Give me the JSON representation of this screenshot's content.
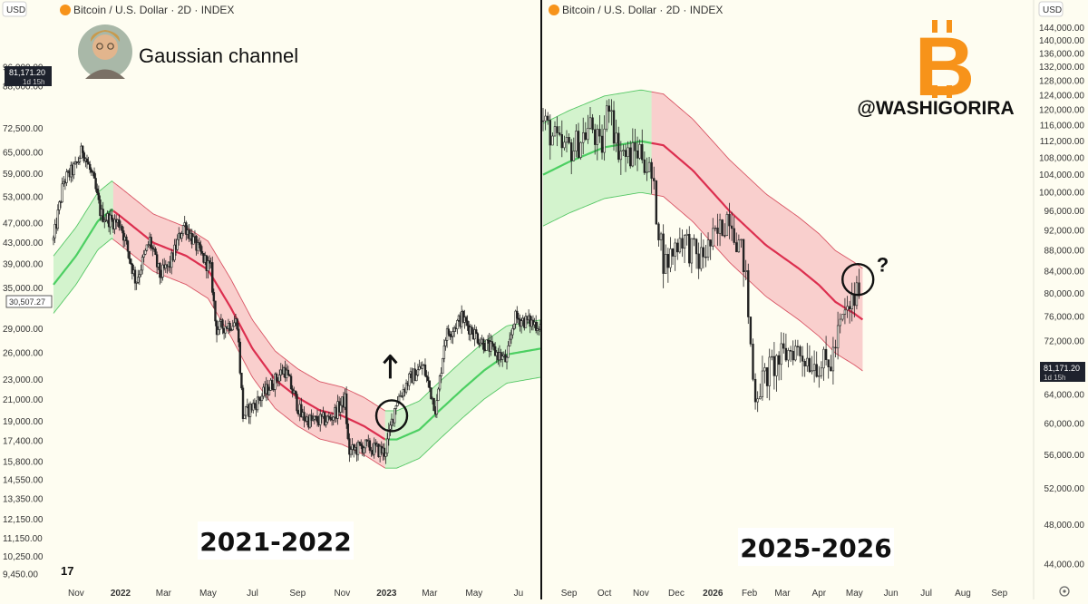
{
  "chart_data": [
    {
      "type": "candlestick",
      "title": "Bitcoin / U.S. Dollar · 2D · INDEX",
      "caption": "2021-2022",
      "annotation_title": "Gaussian channel",
      "currency": "USD",
      "price_label": "81,171.20",
      "countdown": "1d 15h",
      "crosshair_label": "30,507.27",
      "y_scale": "log",
      "ylim": [
        9000,
        120000
      ],
      "yticks": [
        9450,
        10250,
        11150,
        12150,
        13350,
        14550,
        15800,
        17400,
        19000,
        21000,
        23000,
        26000,
        29000,
        35000,
        39000,
        43000,
        47000,
        53000,
        59000,
        65000,
        72500,
        88000,
        96000
      ],
      "ytick_labels": [
        "9,450.00",
        "10,250.00",
        "11,150.00",
        "12,150.00",
        "13,350.00",
        "14,550.00",
        "15,800.00",
        "17,400.00",
        "19,000.00",
        "21,000.00",
        "23,000.00",
        "26,000.00",
        "29,000.00",
        "35,000.00",
        "39,000.00",
        "43,000.00",
        "47,000.00",
        "53,000.00",
        "59,000.00",
        "65,000.00",
        "72,500.00",
        "88,000.00",
        "96,000.00"
      ],
      "xlim": [
        "2021-10-01",
        "2023-07-31"
      ],
      "xticks": [
        {
          "date": "2021-11-01",
          "label": "Nov",
          "bold": false
        },
        {
          "date": "2022-01-01",
          "label": "2022",
          "bold": true
        },
        {
          "date": "2022-03-01",
          "label": "Mar",
          "bold": false
        },
        {
          "date": "2022-05-01",
          "label": "May",
          "bold": false
        },
        {
          "date": "2022-07-01",
          "label": "Jul",
          "bold": false
        },
        {
          "date": "2022-09-01",
          "label": "Sep",
          "bold": false
        },
        {
          "date": "2022-11-01",
          "label": "Nov",
          "bold": false
        },
        {
          "date": "2023-01-01",
          "label": "2023",
          "bold": true
        },
        {
          "date": "2023-03-01",
          "label": "Mar",
          "bold": false
        },
        {
          "date": "2023-05-01",
          "label": "May",
          "bold": false
        },
        {
          "date": "2023-07-01",
          "label": "Ju",
          "bold": false
        }
      ],
      "price_path": [
        [
          "2021-10-01",
          43500
        ],
        [
          "2021-10-15",
          57000
        ],
        [
          "2021-11-01",
          61000
        ],
        [
          "2021-11-10",
          66000
        ],
        [
          "2021-11-25",
          57000
        ],
        [
          "2021-12-05",
          49000
        ],
        [
          "2021-12-20",
          47500
        ],
        [
          "2022-01-01",
          47000
        ],
        [
          "2022-01-22",
          36000
        ],
        [
          "2022-02-10",
          43500
        ],
        [
          "2022-02-24",
          37000
        ],
        [
          "2022-03-10",
          39000
        ],
        [
          "2022-03-29",
          47000
        ],
        [
          "2022-04-20",
          41000
        ],
        [
          "2022-05-05",
          38000
        ],
        [
          "2022-05-12",
          29000
        ],
        [
          "2022-06-10",
          30000
        ],
        [
          "2022-06-18",
          19500
        ],
        [
          "2022-07-10",
          21000
        ],
        [
          "2022-08-14",
          24200
        ],
        [
          "2022-09-06",
          19500
        ],
        [
          "2022-09-20",
          19000
        ],
        [
          "2022-10-15",
          19200
        ],
        [
          "2022-11-05",
          21000
        ],
        [
          "2022-11-10",
          16500
        ],
        [
          "2022-12-01",
          17000
        ],
        [
          "2022-12-30",
          16500
        ],
        [
          "2023-01-14",
          20800
        ],
        [
          "2023-02-01",
          23000
        ],
        [
          "2023-02-20",
          24500
        ],
        [
          "2023-03-10",
          20000
        ],
        [
          "2023-03-22",
          28000
        ],
        [
          "2023-04-14",
          30500
        ],
        [
          "2023-05-10",
          27500
        ],
        [
          "2023-06-15",
          25000
        ],
        [
          "2023-06-25",
          30500
        ],
        [
          "2023-07-31",
          29500
        ]
      ],
      "channel": {
        "width_ratio": 1.14,
        "mid": [
          [
            "2021-10-01",
            35500
          ],
          [
            "2021-11-01",
            40500
          ],
          [
            "2021-12-01",
            47500
          ],
          [
            "2021-12-20",
            50000
          ],
          [
            "2022-01-01",
            48500
          ],
          [
            "2022-02-15",
            43000
          ],
          [
            "2022-04-01",
            40500
          ],
          [
            "2022-05-01",
            38000
          ],
          [
            "2022-06-01",
            32000
          ],
          [
            "2022-07-01",
            26500
          ],
          [
            "2022-08-01",
            23000
          ],
          [
            "2022-09-01",
            21200
          ],
          [
            "2022-10-01",
            20000
          ],
          [
            "2022-11-01",
            19500
          ],
          [
            "2022-12-01",
            18600
          ],
          [
            "2022-12-30",
            17500
          ],
          [
            "2023-01-15",
            17500
          ],
          [
            "2023-02-15",
            18300
          ],
          [
            "2023-03-15",
            20000
          ],
          [
            "2023-04-15",
            22000
          ],
          [
            "2023-05-15",
            24000
          ],
          [
            "2023-06-15",
            25800
          ],
          [
            "2023-07-31",
            26500
          ]
        ],
        "segments": [
          {
            "from": "2021-10-01",
            "to": "2021-12-22",
            "trend": "up"
          },
          {
            "from": "2021-12-22",
            "to": "2022-12-30",
            "trend": "down"
          },
          {
            "from": "2022-12-30",
            "to": "2023-07-31",
            "trend": "up"
          }
        ]
      },
      "markers": [
        {
          "type": "circle",
          "date": "2023-01-08",
          "price": 19500
        },
        {
          "type": "arrow-up",
          "date": "2023-01-06",
          "price": 24500
        }
      ]
    },
    {
      "type": "candlestick",
      "title": "Bitcoin / U.S. Dollar · 2D · INDEX",
      "caption": "2025-2026",
      "watermark": "@WASHIGORIRA",
      "currency": "USD",
      "price_label": "81,171.20",
      "countdown": "1d 15h",
      "y_scale": "log",
      "ylim": [
        42000,
        147000
      ],
      "yticks": [
        44000,
        48000,
        52000,
        56000,
        60000,
        64000,
        68000,
        72000,
        76000,
        80000,
        84000,
        88000,
        92000,
        96000,
        100000,
        104000,
        108000,
        112000,
        116000,
        120000,
        124000,
        128000,
        132000,
        136000,
        140000,
        144000
      ],
      "ytick_labels": [
        "44,000.00",
        "48,000.00",
        "52,000.00",
        "56,000.00",
        "60,000.00",
        "64,000.00",
        "68,000.00",
        "72,000.00",
        "76,000.00",
        "80,000.00",
        "84,000.00",
        "88,000.00",
        "92,000.00",
        "96,000.00",
        "100,000.00",
        "104,000.00",
        "108,000.00",
        "112,000.00",
        "116,000.00",
        "120,000.00",
        "124,000.00",
        "128,000.00",
        "132,000.00",
        "136,000.00",
        "140,000.00",
        "144,000.00"
      ],
      "xlim": [
        "2025-08-10",
        "2026-09-30"
      ],
      "xticks": [
        {
          "date": "2025-09-01",
          "label": "Sep",
          "bold": false
        },
        {
          "date": "2025-10-01",
          "label": "Oct",
          "bold": false
        },
        {
          "date": "2025-11-01",
          "label": "Nov",
          "bold": false
        },
        {
          "date": "2025-12-01",
          "label": "Dec",
          "bold": false
        },
        {
          "date": "2026-01-01",
          "label": "2026",
          "bold": true
        },
        {
          "date": "2026-02-01",
          "label": "Feb",
          "bold": false
        },
        {
          "date": "2026-03-01",
          "label": "Mar",
          "bold": false
        },
        {
          "date": "2026-04-01",
          "label": "Apr",
          "bold": false
        },
        {
          "date": "2026-05-01",
          "label": "May",
          "bold": false
        },
        {
          "date": "2026-06-01",
          "label": "Jun",
          "bold": false
        },
        {
          "date": "2026-07-01",
          "label": "Jul",
          "bold": false
        },
        {
          "date": "2026-08-01",
          "label": "Aug",
          "bold": false
        },
        {
          "date": "2026-09-01",
          "label": "Sep",
          "bold": false
        }
      ],
      "price_path": [
        [
          "2025-08-10",
          117000
        ],
        [
          "2025-08-25",
          110000
        ],
        [
          "2025-09-05",
          110500
        ],
        [
          "2025-09-20",
          116000
        ],
        [
          "2025-09-28",
          109000
        ],
        [
          "2025-10-06",
          125000
        ],
        [
          "2025-10-10",
          112000
        ],
        [
          "2025-10-20",
          108000
        ],
        [
          "2025-11-01",
          110000
        ],
        [
          "2025-11-10",
          103000
        ],
        [
          "2025-11-21",
          85000
        ],
        [
          "2025-12-05",
          91000
        ],
        [
          "2025-12-20",
          86000
        ],
        [
          "2026-01-05",
          91000
        ],
        [
          "2026-01-15",
          96000
        ],
        [
          "2026-01-28",
          85000
        ],
        [
          "2026-02-05",
          64000
        ],
        [
          "2026-02-20",
          68000
        ],
        [
          "2026-03-10",
          71000
        ],
        [
          "2026-03-25",
          69000
        ],
        [
          "2026-04-10",
          68000
        ],
        [
          "2026-04-20",
          75000
        ],
        [
          "2026-05-01",
          79000
        ],
        [
          "2026-05-05",
          81171
        ]
      ],
      "channel": {
        "width_ratio": 1.12,
        "mid": [
          [
            "2025-08-10",
            104000
          ],
          [
            "2025-09-01",
            107000
          ],
          [
            "2025-10-01",
            110500
          ],
          [
            "2025-11-01",
            112000
          ],
          [
            "2025-11-20",
            111000
          ],
          [
            "2025-12-15",
            105000
          ],
          [
            "2026-01-15",
            96000
          ],
          [
            "2026-02-15",
            89000
          ],
          [
            "2026-03-15",
            84500
          ],
          [
            "2026-04-01",
            81500
          ],
          [
            "2026-04-15",
            78500
          ],
          [
            "2026-05-01",
            76500
          ],
          [
            "2026-05-08",
            75500
          ]
        ],
        "segments": [
          {
            "from": "2025-08-10",
            "to": "2025-11-10",
            "trend": "up"
          },
          {
            "from": "2025-11-10",
            "to": "2026-05-08",
            "trend": "down"
          }
        ]
      },
      "markers": [
        {
          "type": "circle",
          "date": "2026-05-04",
          "price": 82500
        },
        {
          "type": "question",
          "label": "?",
          "date": "2026-05-25",
          "price": 85000
        }
      ]
    }
  ]
}
